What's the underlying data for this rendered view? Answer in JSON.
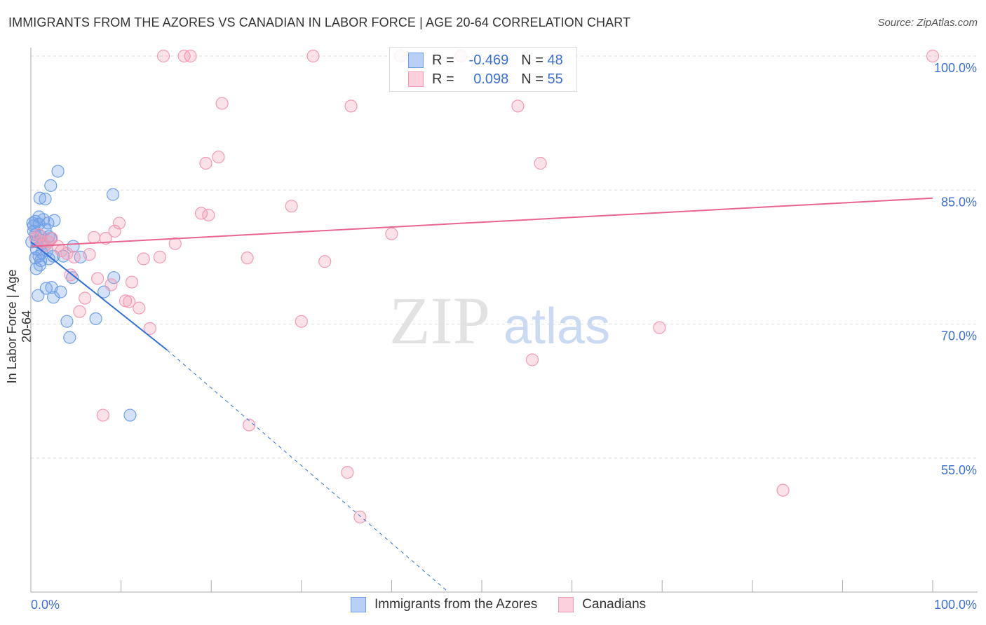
{
  "chart_data": {
    "type": "scatter",
    "title": "IMMIGRANTS FROM THE AZORES VS CANADIAN IN LABOR FORCE | AGE 20-64 CORRELATION CHART",
    "source": "Source: ZipAtlas.com",
    "xlabel": "",
    "ylabel": "In Labor Force | Age 20-64",
    "xlim": [
      0,
      100
    ],
    "ylim": [
      40,
      100
    ],
    "x_tick_labels": [
      "0.0%",
      "100.0%"
    ],
    "y_ticks": [
      100,
      85,
      70,
      55
    ],
    "y_tick_labels": [
      "100.0%",
      "85.0%",
      "70.0%",
      "55.0%"
    ],
    "grid": true,
    "watermark": "ZIPatlas",
    "legend": [
      {
        "r_label": "R =",
        "r": "-0.469",
        "n_label": "N =",
        "n": "48"
      },
      {
        "r_label": "R =",
        "r": "0.098",
        "n_label": "N =",
        "n": "55"
      }
    ],
    "series": [
      {
        "name": "Immigrants from the Azores",
        "color": "#6fa0e6",
        "line_color": "#2f6fd6",
        "trend": {
          "x0": 0,
          "y0": 79.2,
          "x_solid_end": 15.1,
          "y_solid_end": 67.1,
          "x1": 46.3,
          "y1": 40
        },
        "points": [
          [
            3.0,
            87.1
          ],
          [
            2.2,
            85.5
          ],
          [
            1.0,
            84.1
          ],
          [
            1.6,
            84.0
          ],
          [
            9.1,
            84.5
          ],
          [
            0.5,
            81.5
          ],
          [
            1.4,
            81.7
          ],
          [
            1.9,
            81.3
          ],
          [
            2.6,
            81.6
          ],
          [
            0.9,
            81.2
          ],
          [
            0.3,
            81.0
          ],
          [
            1.6,
            80.6
          ],
          [
            0.5,
            80.0
          ],
          [
            1.1,
            79.8
          ],
          [
            2.2,
            79.6
          ],
          [
            0.7,
            79.2
          ],
          [
            1.2,
            79.0
          ],
          [
            4.7,
            78.7
          ],
          [
            0.6,
            78.4
          ],
          [
            1.8,
            78.2
          ],
          [
            0.9,
            77.6
          ],
          [
            2.5,
            77.6
          ],
          [
            5.5,
            77.5
          ],
          [
            2.0,
            77.3
          ],
          [
            1.0,
            76.6
          ],
          [
            0.6,
            76.2
          ],
          [
            4.6,
            75.2
          ],
          [
            9.2,
            75.2
          ],
          [
            1.7,
            74.0
          ],
          [
            2.3,
            74.1
          ],
          [
            3.3,
            73.6
          ],
          [
            8.1,
            73.6
          ],
          [
            0.8,
            73.2
          ],
          [
            2.5,
            73.0
          ],
          [
            4.0,
            70.3
          ],
          [
            7.2,
            70.6
          ],
          [
            4.3,
            68.5
          ],
          [
            11.0,
            59.8
          ],
          [
            0.3,
            80.4
          ],
          [
            0.9,
            82.0
          ],
          [
            1.2,
            78.0
          ],
          [
            0.2,
            81.3
          ],
          [
            3.6,
            77.6
          ],
          [
            1.1,
            77.1
          ],
          [
            0.5,
            77.4
          ],
          [
            1.6,
            78.8
          ],
          [
            2.0,
            79.8
          ],
          [
            0.1,
            79.2
          ]
        ]
      },
      {
        "name": "Canadians",
        "color": "#f29ab4",
        "line_color": "#e8658f",
        "trend": {
          "x0": 0,
          "y0": 78.7,
          "x1": 100,
          "y1": 84.1
        },
        "points": [
          [
            14.7,
            100
          ],
          [
            17.0,
            100
          ],
          [
            17.7,
            100
          ],
          [
            31.3,
            100
          ],
          [
            41.0,
            100
          ],
          [
            47.7,
            100
          ],
          [
            100,
            100
          ],
          [
            21.2,
            94.7
          ],
          [
            35.5,
            94.4
          ],
          [
            54.0,
            94.4
          ],
          [
            20.8,
            88.7
          ],
          [
            19.4,
            88.0
          ],
          [
            56.5,
            88.0
          ],
          [
            28.9,
            83.2
          ],
          [
            18.9,
            82.4
          ],
          [
            19.7,
            82.2
          ],
          [
            9.8,
            81.3
          ],
          [
            9.3,
            80.4
          ],
          [
            40.0,
            80.1
          ],
          [
            7.0,
            79.7
          ],
          [
            8.3,
            79.6
          ],
          [
            2.3,
            79.6
          ],
          [
            16.0,
            79.0
          ],
          [
            1.2,
            79.2
          ],
          [
            3.0,
            78.7
          ],
          [
            4.0,
            77.9
          ],
          [
            6.5,
            77.8
          ],
          [
            12.5,
            77.3
          ],
          [
            14.3,
            77.5
          ],
          [
            24.0,
            77.4
          ],
          [
            4.8,
            77.5
          ],
          [
            32.6,
            77.0
          ],
          [
            7.4,
            75.1
          ],
          [
            4.4,
            75.5
          ],
          [
            11.2,
            74.7
          ],
          [
            8.9,
            74.4
          ],
          [
            6.0,
            72.9
          ],
          [
            10.5,
            72.6
          ],
          [
            10.9,
            72.5
          ],
          [
            12.0,
            71.8
          ],
          [
            5.4,
            71.4
          ],
          [
            30.0,
            70.3
          ],
          [
            13.2,
            69.5
          ],
          [
            69.7,
            69.6
          ],
          [
            55.6,
            66.0
          ],
          [
            8.0,
            59.8
          ],
          [
            24.2,
            58.7
          ],
          [
            35.1,
            53.4
          ],
          [
            83.4,
            51.4
          ],
          [
            36.5,
            48.4
          ],
          [
            0.9,
            80.0
          ],
          [
            1.6,
            78.8
          ],
          [
            0.5,
            79.6
          ],
          [
            3.4,
            78.2
          ],
          [
            2.0,
            79.2
          ]
        ]
      }
    ]
  }
}
